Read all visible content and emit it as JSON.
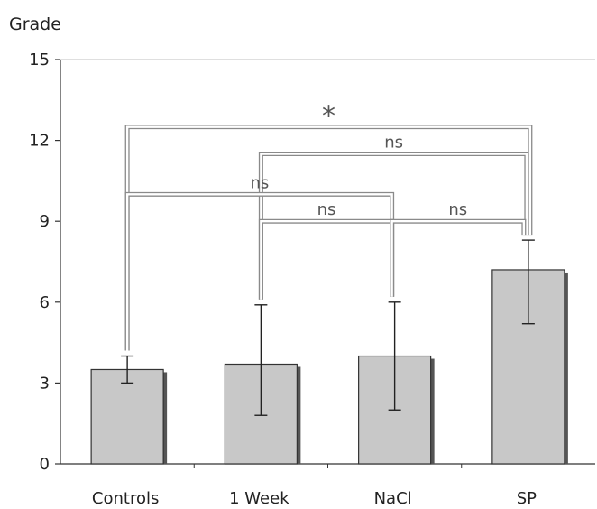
{
  "chart_data": {
    "type": "bar",
    "ylabel": "Grade",
    "ylim": [
      0,
      15
    ],
    "yticks": [
      0,
      3,
      6,
      9,
      12,
      15
    ],
    "categories": [
      "Controls",
      "1 Week",
      "NaCl",
      "SP"
    ],
    "values": [
      3.5,
      3.7,
      4.0,
      7.2
    ],
    "error": [
      {
        "low": 3.0,
        "high": 4.0
      },
      {
        "low": 1.8,
        "high": 5.9
      },
      {
        "low": 2.0,
        "high": 6.0
      },
      {
        "low": 5.2,
        "high": 8.3
      }
    ],
    "significance": [
      {
        "from": 0,
        "to": 3,
        "level": 12.5,
        "label": "*"
      },
      {
        "from": 1,
        "to": 3,
        "level": 11.5,
        "label": "ns"
      },
      {
        "from": 0,
        "to": 2,
        "level": 10.0,
        "label": "ns"
      },
      {
        "from": 1,
        "to": 2,
        "level": 9.0,
        "label": "ns"
      },
      {
        "from": 2,
        "to": 3,
        "level": 9.0,
        "label": "ns"
      }
    ],
    "grid": false,
    "colors": {
      "bar_fill": "#c8c8c8",
      "bar_shadow": "#555555",
      "bracket": "#8a8a8a",
      "axis": "#333333"
    }
  }
}
